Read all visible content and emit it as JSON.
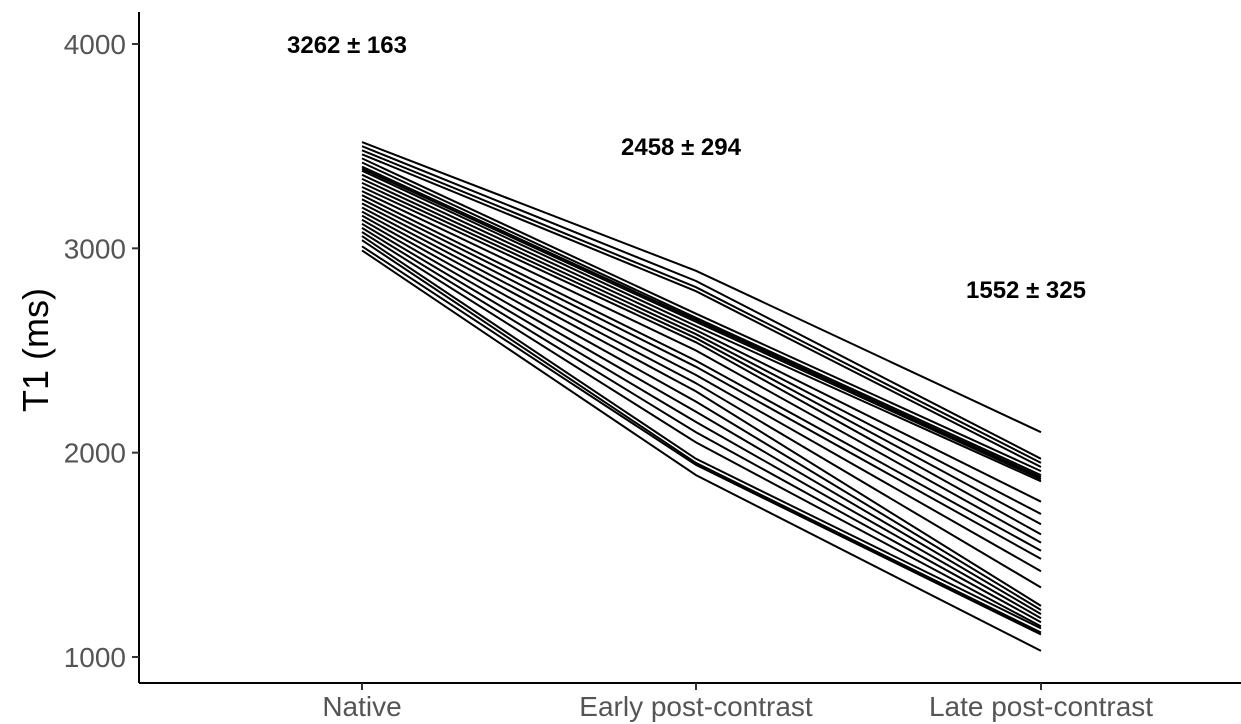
{
  "chart_data": {
    "type": "line",
    "title": "",
    "xlabel": "",
    "ylabel": "T1 (ms)",
    "categories": [
      "Native",
      "Early post-contrast",
      "Late post-contrast"
    ],
    "ylim": [
      950,
      4150
    ],
    "yticks": [
      1000,
      2000,
      3000,
      4000
    ],
    "grid": false,
    "legend": "none",
    "annotations": [
      {
        "category": "Native",
        "y": 4000,
        "text": "3262 ± 163"
      },
      {
        "category": "Early post-contrast",
        "y": 3500,
        "text": "2458 ± 294"
      },
      {
        "category": "Late post-contrast",
        "y": 2800,
        "text": "1552 ± 325"
      }
    ],
    "line_color": "#000000",
    "series": [
      {
        "values": [
          3520,
          2890,
          2100
        ]
      },
      {
        "values": [
          3500,
          2840,
          1970
        ]
      },
      {
        "values": [
          3480,
          2810,
          1950
        ]
      },
      {
        "values": [
          3460,
          2790,
          1930
        ]
      },
      {
        "values": [
          3440,
          2680,
          1910
        ]
      },
      {
        "values": [
          3420,
          2660,
          1890
        ]
      },
      {
        "values": [
          3400,
          2650,
          1880
        ]
      },
      {
        "values": [
          3390,
          2640,
          1870
        ]
      },
      {
        "values": [
          3380,
          2620,
          1860
        ]
      },
      {
        "values": [
          3360,
          2600,
          1760
        ]
      },
      {
        "values": [
          3340,
          2580,
          1700
        ]
      },
      {
        "values": [
          3320,
          2560,
          1650
        ]
      },
      {
        "values": [
          3300,
          2540,
          1600
        ]
      },
      {
        "values": [
          3280,
          2500,
          1560
        ]
      },
      {
        "values": [
          3260,
          2450,
          1520
        ]
      },
      {
        "values": [
          3240,
          2420,
          1480
        ]
      },
      {
        "values": [
          3220,
          2380,
          1420
        ]
      },
      {
        "values": [
          3200,
          2340,
          1340
        ]
      },
      {
        "values": [
          3180,
          2300,
          1250
        ]
      },
      {
        "values": [
          3160,
          2250,
          1230
        ]
      },
      {
        "values": [
          3140,
          2200,
          1210
        ]
      },
      {
        "values": [
          3120,
          2150,
          1190
        ]
      },
      {
        "values": [
          3100,
          2100,
          1170
        ]
      },
      {
        "values": [
          3080,
          2050,
          1150
        ]
      },
      {
        "values": [
          3060,
          1970,
          1140
        ]
      },
      {
        "values": [
          3040,
          1950,
          1120
        ]
      },
      {
        "values": [
          3010,
          1940,
          1110
        ]
      },
      {
        "values": [
          2990,
          1890,
          1030
        ]
      }
    ]
  }
}
